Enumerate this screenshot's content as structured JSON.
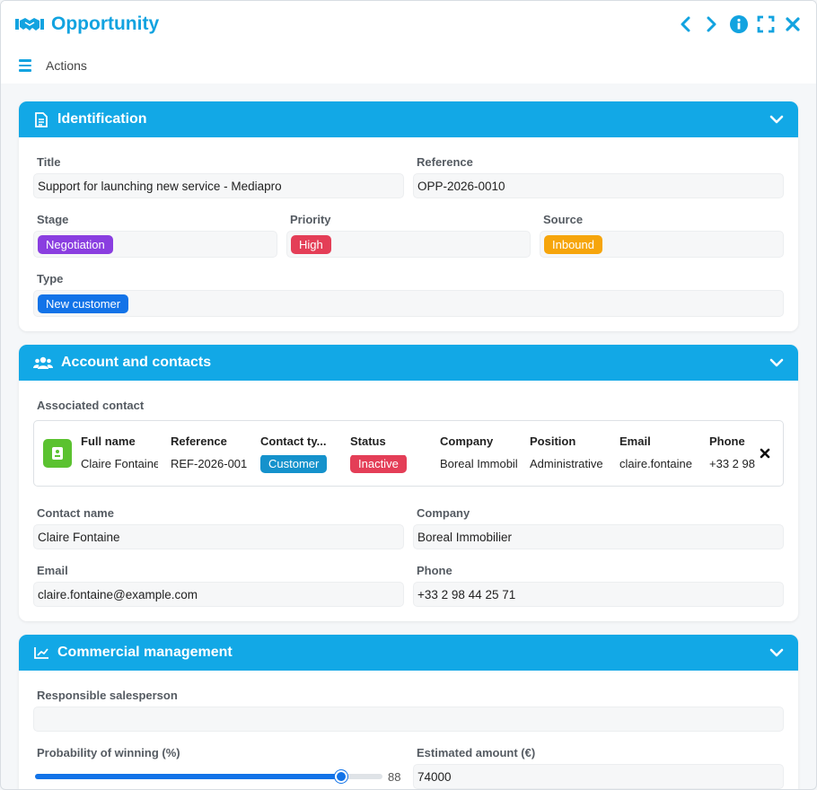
{
  "header": {
    "title": "Opportunity",
    "icons": [
      "handshake-icon",
      "prev-icon",
      "next-icon",
      "info-icon",
      "fullscreen-icon",
      "close-icon"
    ]
  },
  "menubar": {
    "actions_label": "Actions"
  },
  "identification": {
    "title": "Identification",
    "title_label": "Title",
    "title_value": "Support for launching new service - Mediapro",
    "reference_label": "Reference",
    "reference_value": "OPP-2026-0010",
    "stage_label": "Stage",
    "stage_value": "Negotiation",
    "stage_color": "#8a3ee0",
    "priority_label": "Priority",
    "priority_value": "High",
    "priority_color": "#e43e57",
    "source_label": "Source",
    "source_value": "Inbound",
    "source_color": "#f6a50c",
    "type_label": "Type",
    "type_value": "New customer",
    "type_color": "#1273e8"
  },
  "account": {
    "title": "Account and contacts",
    "associated_label": "Associated contact",
    "card": {
      "columns": [
        "Full name",
        "Reference",
        "Contact ty...",
        "Status",
        "Company",
        "Position",
        "Email",
        "Phone"
      ],
      "full_name": "Claire Fontaine",
      "reference": "REF-2026-001",
      "contact_type": "Customer",
      "contact_type_color": "#1592cc",
      "status": "Inactive",
      "status_color": "#e43e57",
      "company": "Boreal Immobilier",
      "position": "Administrative",
      "email": "claire.fontaine",
      "phone": "+33 2 98"
    },
    "contact_name_label": "Contact name",
    "contact_name_value": "Claire Fontaine",
    "company_label": "Company",
    "company_value": "Boreal Immobilier",
    "email_label": "Email",
    "email_value": "claire.fontaine@example.com",
    "phone_label": "Phone",
    "phone_value": "+33 2 98 44 25 71"
  },
  "commercial": {
    "title": "Commercial management",
    "salesperson_label": "Responsible salesperson",
    "salesperson_value": "",
    "probability_label": "Probability of winning (%)",
    "probability_value": "88",
    "probability_fraction": 0.88,
    "amount_label": "Estimated amount (€)",
    "amount_value": "74000"
  },
  "colors": {
    "accent": "#12a3e0",
    "section_header": "#12a8e6",
    "slider": "#1273e8",
    "avatar": "#5bc230"
  }
}
